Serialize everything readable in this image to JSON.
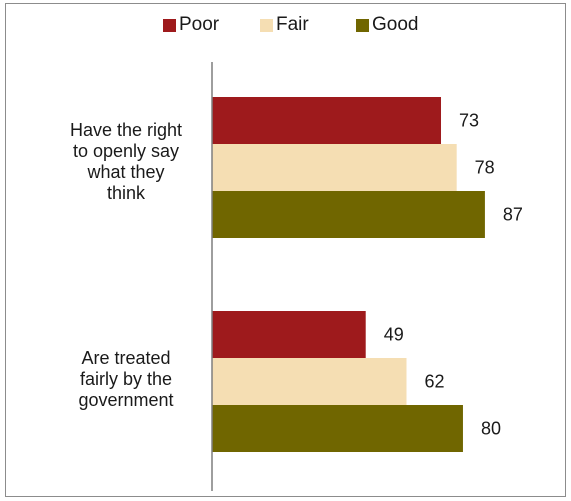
{
  "chart_data": {
    "type": "bar",
    "orientation": "horizontal",
    "categories": [
      "Have the right to openly say what they think",
      "Are treated fairly by the government"
    ],
    "category_lines": [
      [
        "Have the right",
        "to openly say",
        "what they",
        "think"
      ],
      [
        "Are treated",
        "fairly by the",
        "government"
      ]
    ],
    "series": [
      {
        "name": "Poor",
        "color": "#9e1a1c",
        "values": [
          73,
          49
        ]
      },
      {
        "name": "Fair",
        "color": "#f5deb3",
        "values": [
          78,
          62
        ]
      },
      {
        "name": "Good",
        "color": "#706600",
        "values": [
          87,
          80
        ]
      }
    ],
    "xlim": [
      0,
      100
    ],
    "legend_position": "top",
    "grid": false,
    "title": "",
    "xlabel": "",
    "ylabel": ""
  }
}
